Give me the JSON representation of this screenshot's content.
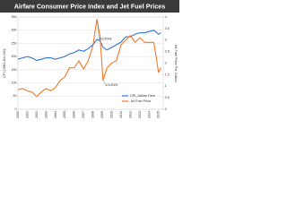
{
  "chart_data": {
    "type": "line",
    "title": "Airfare Consumer Price Index and Jet Fuel Prices",
    "y_label": "CPI (1982-84=100)",
    "y2_label": "Jet Fuel Price Per Gallon",
    "x": [
      2000,
      2000.5,
      2001,
      2001.5,
      2002,
      2002.5,
      2003,
      2003.5,
      2004,
      2004.5,
      2005,
      2005.5,
      2006,
      2006.5,
      2007,
      2007.5,
      2008,
      2008.42,
      2008.75,
      2009.08,
      2009.5,
      2010,
      2010.5,
      2011,
      2011.5,
      2012,
      2012.5,
      2013,
      2013.5,
      2014,
      2014.5,
      2015,
      2015.25
    ],
    "series": [
      {
        "name": "CPI_Airline Fare",
        "color": "#2e75d6",
        "values": [
          190,
          195,
          200,
          195,
          185,
          190,
          195,
          195,
          190,
          195,
          200,
          210,
          215,
          225,
          220,
          230,
          245,
          265,
          260,
          235,
          225,
          235,
          245,
          255,
          275,
          275,
          285,
          290,
          290,
          295,
          300,
          285,
          290
        ]
      },
      {
        "name": "Jet Fuel Price",
        "color": "#f07a2a",
        "axis": "y2",
        "values": [
          0.85,
          0.9,
          0.8,
          0.75,
          0.55,
          0.75,
          0.9,
          0.8,
          0.95,
          1.25,
          1.4,
          1.8,
          1.8,
          2.1,
          1.75,
          2.1,
          2.75,
          3.9,
          3.2,
          1.25,
          1.8,
          2.0,
          2.1,
          2.8,
          3.0,
          3.2,
          2.9,
          3.1,
          2.9,
          2.9,
          2.9,
          1.6,
          1.8
        ]
      }
    ],
    "annotations": [
      {
        "text": "6/1/2008",
        "x": 2008.42
      },
      {
        "text": "2/1/2009",
        "x": 2009.08
      }
    ],
    "xlim": [
      2000,
      2015.5
    ],
    "xticks": [
      2000,
      2001,
      2002,
      2003,
      2004,
      2005,
      2006,
      2007,
      2008,
      2009,
      2010,
      2011,
      2012,
      2013,
      2014,
      2015
    ],
    "ylim": [
      0,
      350
    ],
    "yticks": [
      0,
      50,
      100,
      150,
      200,
      250,
      300,
      350
    ],
    "y2lim": [
      0,
      4
    ],
    "y2ticks": [
      0,
      0.5,
      1,
      1.5,
      2,
      2.5,
      3,
      3.5,
      4
    ],
    "grid": true,
    "legend": "lower-right"
  }
}
